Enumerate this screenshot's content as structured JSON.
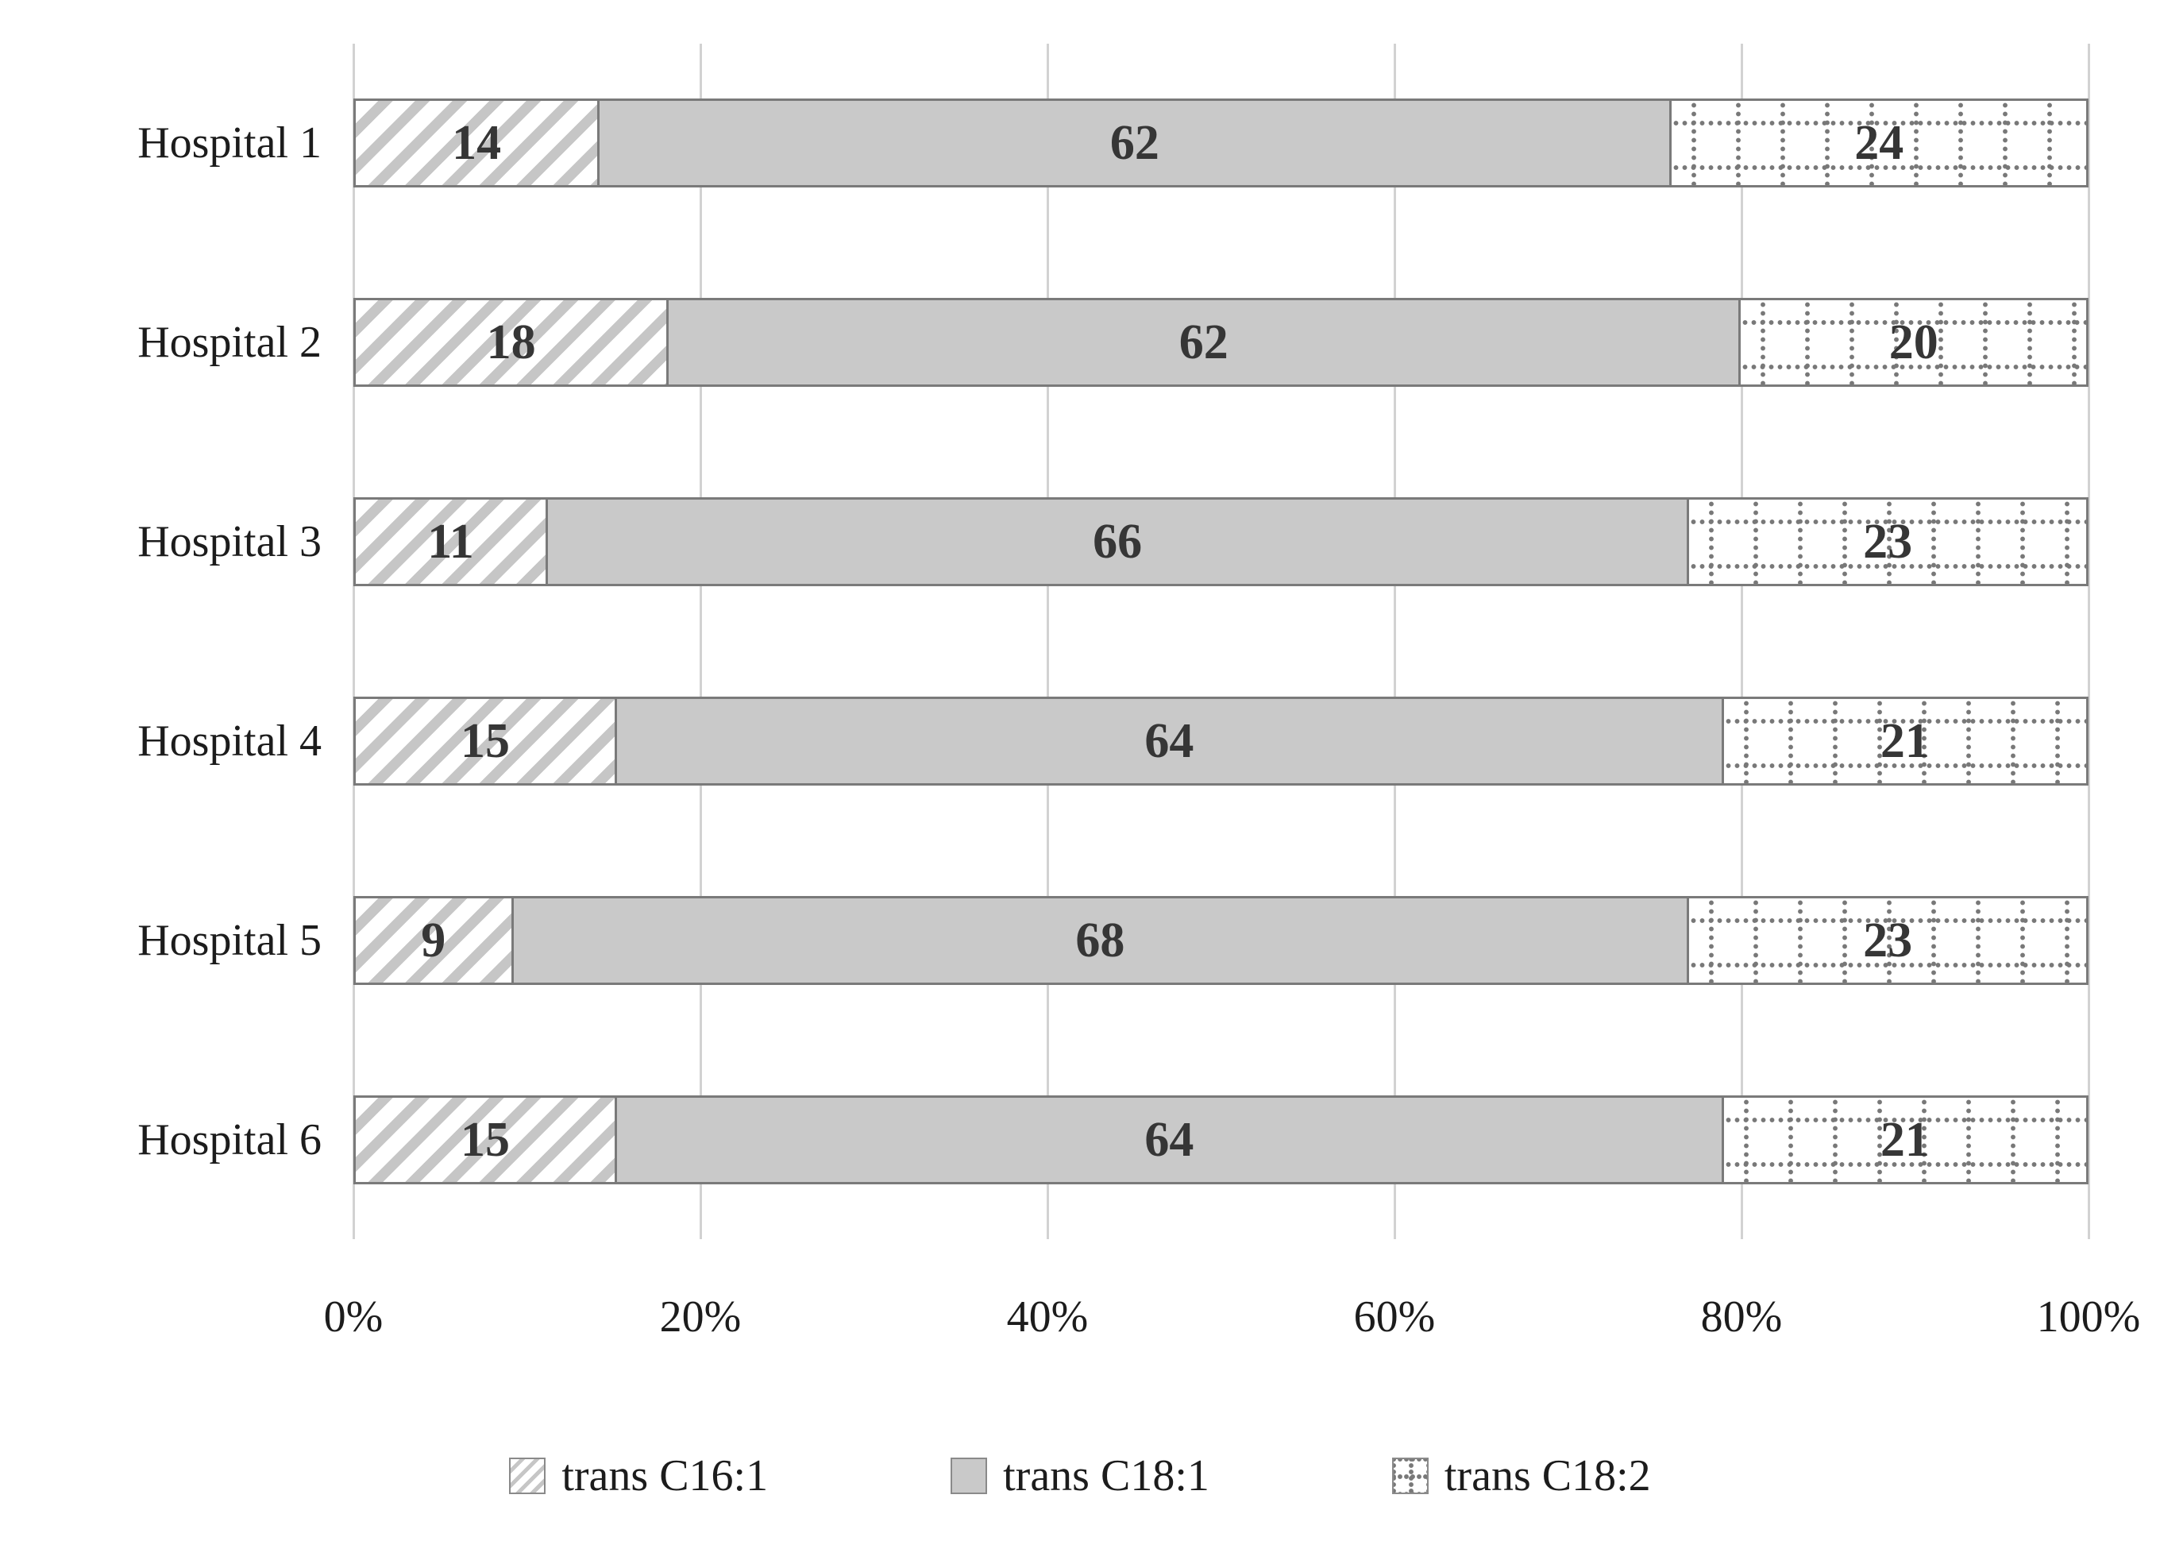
{
  "chart_data": {
    "type": "bar",
    "orientation": "horizontal",
    "stacked": true,
    "title": "",
    "categories": [
      "Hospital 1",
      "Hospital 2",
      "Hospital 3",
      "Hospital 4",
      "Hospital 5",
      "Hospital 6"
    ],
    "series": [
      {
        "name": "trans C16:1",
        "pattern": "diagonal-hatch",
        "values": [
          14,
          18,
          11,
          15,
          9,
          15
        ]
      },
      {
        "name": "trans C18:1",
        "pattern": "solid-gray",
        "values": [
          62,
          62,
          66,
          64,
          68,
          64
        ]
      },
      {
        "name": "trans C18:2",
        "pattern": "dotted-grid",
        "values": [
          24,
          20,
          23,
          21,
          23,
          21
        ]
      }
    ],
    "x_axis": {
      "min": 0,
      "max": 100,
      "tick_labels": [
        "0%",
        "20%",
        "40%",
        "60%",
        "80%",
        "100%"
      ]
    },
    "grid": "vertical",
    "legend_position": "bottom",
    "colors": {
      "solid_fill": "#c9c9c9",
      "hatch_stripe": "#c6c6c6",
      "dot_color": "#787878",
      "segment_border": "#7a7a7a",
      "gridline": "#d2d2d2",
      "text": "#1c1c1c",
      "value_text": "#363636",
      "background": "#ffffff"
    }
  }
}
